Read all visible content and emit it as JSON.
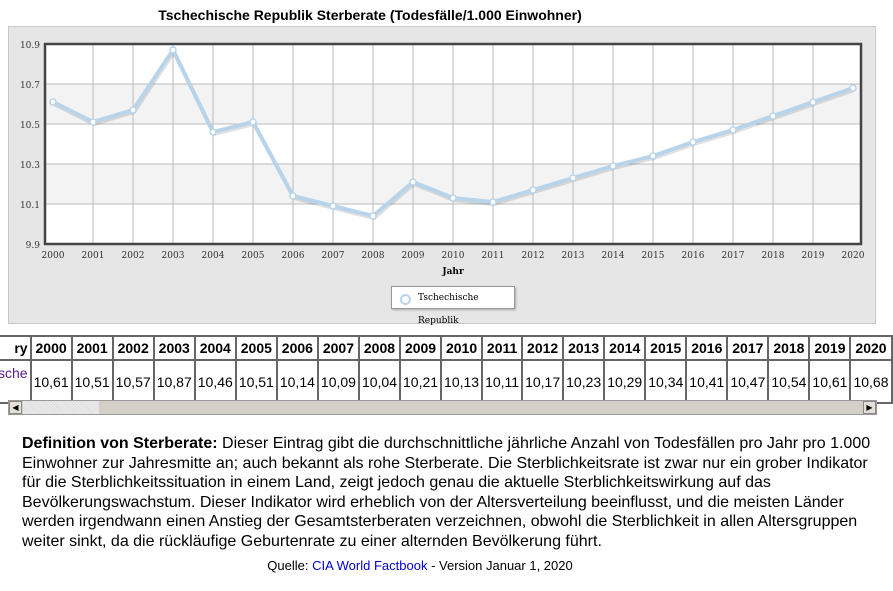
{
  "chart_data": {
    "type": "line",
    "title": "Tschechische Republik Sterberate (Todesfälle/1.000 Einwohner)",
    "xlabel": "Jahr",
    "ylabel": "",
    "categories": [
      "2000",
      "2001",
      "2002",
      "2003",
      "2004",
      "2005",
      "2006",
      "2007",
      "2008",
      "2009",
      "2010",
      "2011",
      "2012",
      "2013",
      "2014",
      "2015",
      "2016",
      "2017",
      "2018",
      "2019",
      "2020"
    ],
    "series": [
      {
        "name": "Tschechische Republik",
        "values": [
          10.61,
          10.51,
          10.57,
          10.87,
          10.46,
          10.51,
          10.14,
          10.09,
          10.04,
          10.21,
          10.13,
          10.11,
          10.17,
          10.23,
          10.29,
          10.34,
          10.41,
          10.47,
          10.54,
          10.61,
          10.68
        ]
      }
    ],
    "yticks": [
      "9.9",
      "10.1",
      "10.3",
      "10.5",
      "10.7",
      "10.9"
    ],
    "ylim": [
      9.9,
      10.9
    ],
    "grid": true,
    "legend": "bottom-center",
    "color": "#b8d4ea"
  },
  "table": {
    "header_first": "ry",
    "row_first": "sche",
    "values": [
      "10,61",
      "10,51",
      "10,57",
      "10,87",
      "10,46",
      "10,51",
      "10,14",
      "10,09",
      "10,04",
      "10,21",
      "10,13",
      "10,11",
      "10,17",
      "10,23",
      "10,29",
      "10,34",
      "10,41",
      "10,47",
      "10,54",
      "10,61",
      "10,68"
    ]
  },
  "definition": {
    "term": "Definition von Sterberate:",
    "text": " Dieser Eintrag gibt die durchschnittliche jährliche Anzahl von Todesfällen pro Jahr pro 1.000 Einwohner zur Jahresmitte an; auch bekannt als rohe Sterberate. Die Sterblichkeitsrate ist zwar nur ein grober Indikator für die Sterblichkeitssituation in einem Land, zeigt jedoch genau die aktuelle Sterblichkeitswirkung auf das Bevölkerungswachstum. Dieser Indikator wird erheblich von der Altersverteilung beeinflusst, und die meisten Länder werden irgendwann einen Anstieg der Gesamtsterberaten verzeichnen, obwohl die Sterblichkeit in allen Altersgruppen weiter sinkt, da die rückläufige Geburtenrate zu einer alternden Bevölkerung führt."
  },
  "source": {
    "label": "Quelle: ",
    "link": "CIA World Factbook",
    "suffix": " - Version Januar 1, 2020"
  }
}
